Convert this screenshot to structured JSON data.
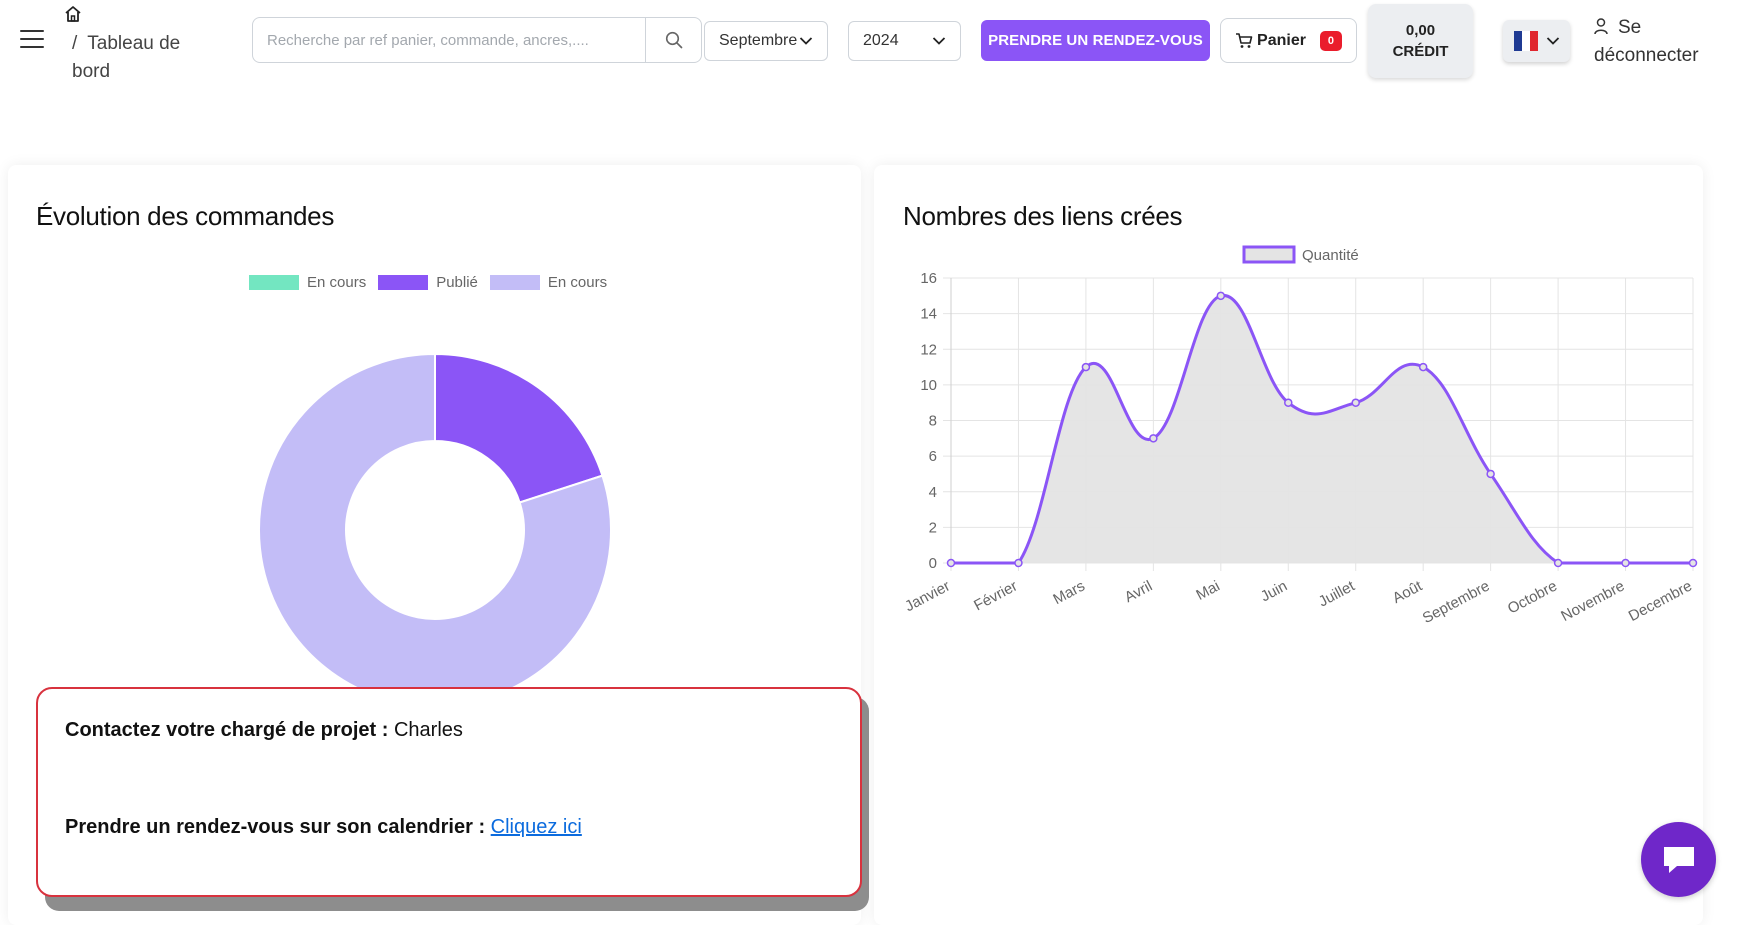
{
  "header": {
    "breadcrumb_separator": "/",
    "breadcrumb_page": "Tableau de bord",
    "search_placeholder": "Recherche par ref panier, commande, ancres,....",
    "month_select": "Septembre",
    "year_select": "2024",
    "rdv_button": "PRENDRE UN RENDEZ-VOUS",
    "cart_label": "Panier",
    "cart_count": "0",
    "credit_amount": "0,00",
    "credit_label": "CRÉDIT",
    "language": "fr",
    "logout_label": "Se déconnecter",
    "accent_color": "#8b55f6"
  },
  "orders_card": {
    "title": "Évolution des commandes"
  },
  "links_card": {
    "title": "Nombres des liens crées"
  },
  "contact": {
    "line1_label": "Contactez votre chargé de projet :",
    "line1_value": "Charles",
    "line2_label": "Prendre un rendez-vous sur son calendrier :",
    "line2_link": "Cliquez ici"
  },
  "chart_data": [
    {
      "type": "pie",
      "variant": "doughnut",
      "labels": [
        "En cours",
        "Publié",
        "En cours"
      ],
      "values": [
        0,
        1,
        4
      ],
      "colors": [
        "#73e6c1",
        "#8b55f6",
        "#c3bdf7"
      ],
      "legend": "top"
    },
    {
      "type": "area",
      "categories": [
        "Janvier",
        "Février",
        "Mars",
        "Avril",
        "Mai",
        "Juin",
        "Juillet",
        "Août",
        "Septembre",
        "Octobre",
        "Novembre",
        "Decembre"
      ],
      "series": [
        {
          "name": "Quantité",
          "values": [
            0,
            0,
            11,
            7,
            15,
            9,
            9,
            11,
            5,
            0,
            0,
            0
          ],
          "color": "#8b55f6",
          "fill": "#e4e4e4"
        }
      ],
      "ylim": [
        0,
        16
      ],
      "yticks": [
        0,
        2,
        4,
        6,
        8,
        10,
        12,
        14,
        16
      ],
      "grid": true,
      "legend": "top"
    }
  ]
}
